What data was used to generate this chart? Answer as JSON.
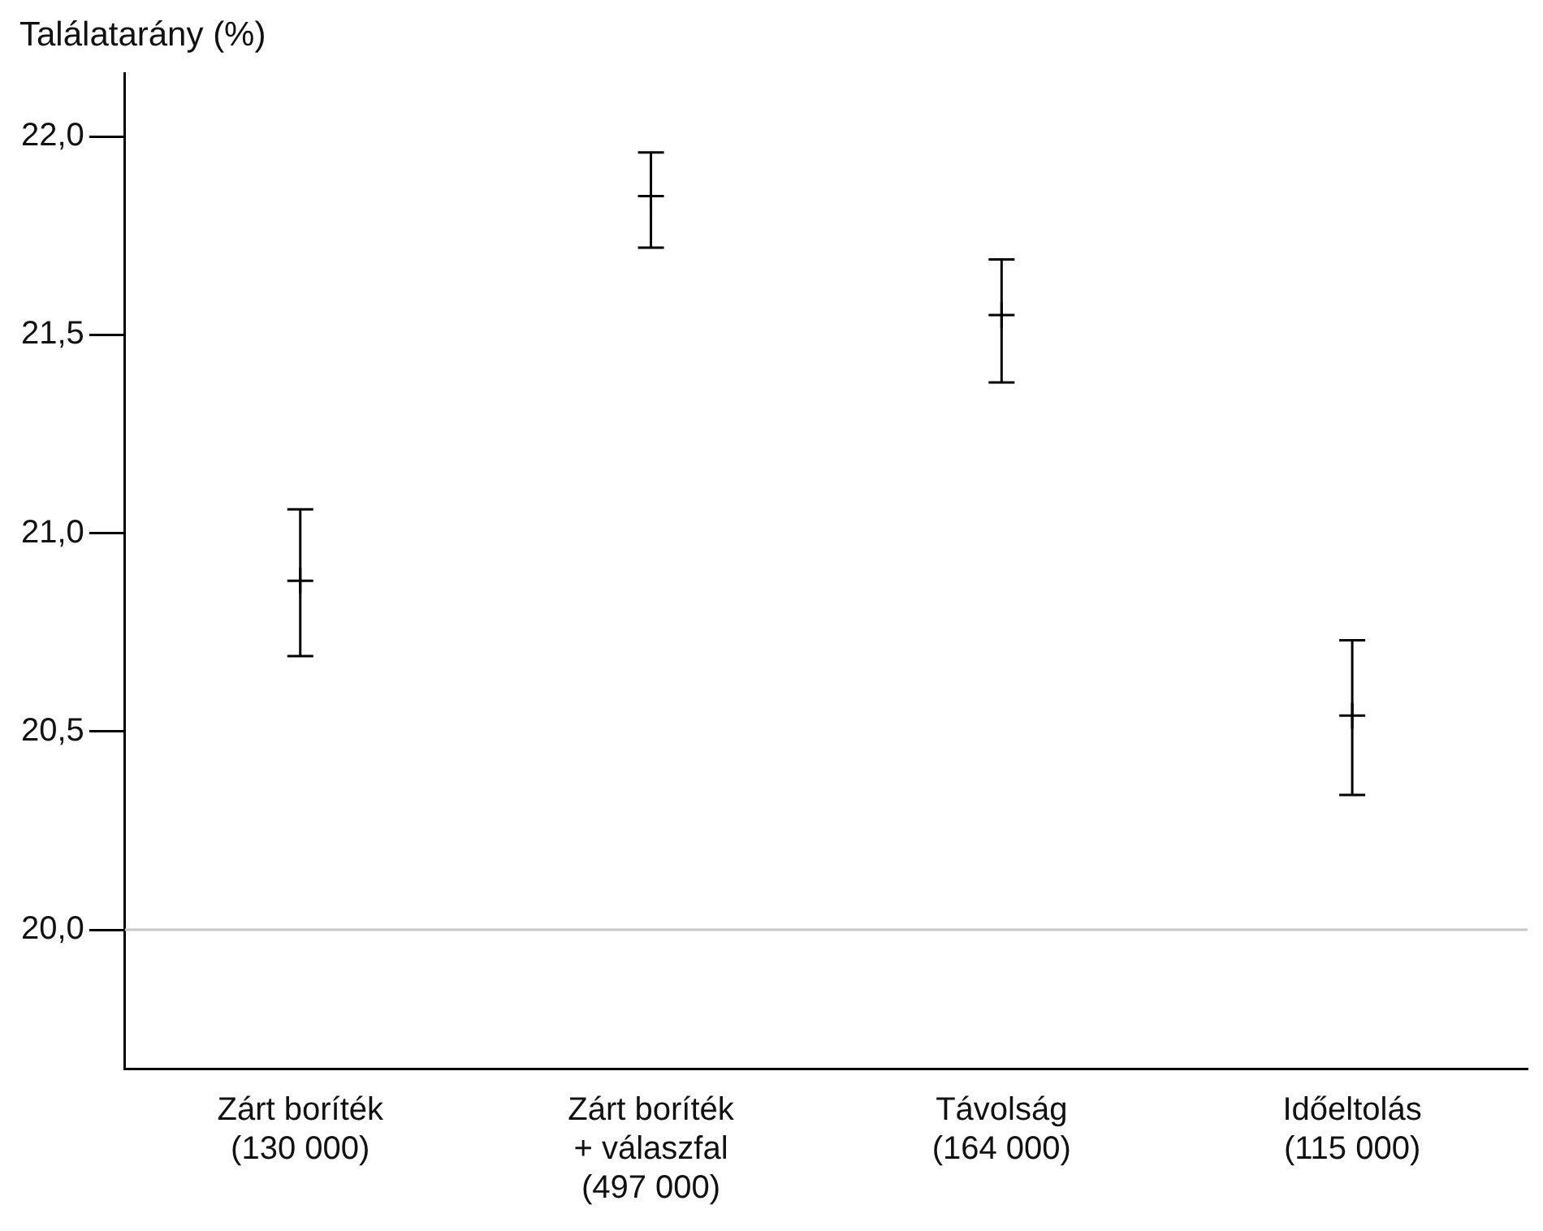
{
  "chart_data": {
    "type": "scatter",
    "ylabel": "Találatarány (%)",
    "categories": [
      "Zárt boríték\n(130 000)",
      "Zárt boríték\n+ válaszfal\n(497 000)",
      "Távolság\n(164 000)",
      "Időeltolás\n(115 000)"
    ],
    "values": [
      20.88,
      21.85,
      21.55,
      20.54
    ],
    "errors": [
      [
        20.69,
        21.06
      ],
      [
        21.72,
        21.96
      ],
      [
        21.38,
        21.69
      ],
      [
        20.34,
        20.73
      ]
    ],
    "color": "#000000",
    "marker": "cross",
    "ylim": [
      19.65,
      22.16
    ],
    "yticks": [
      {
        "value": 20,
        "label": "20,0"
      },
      {
        "value": 20.5,
        "label": "20,5"
      },
      {
        "value": 21,
        "label": "21,0"
      },
      {
        "value": 21.5,
        "label": "21,5"
      },
      {
        "value": 22,
        "label": "22,0"
      }
    ],
    "ref_lines": [
      {
        "axis": "y",
        "value": 20,
        "color": "#c8c8c8"
      }
    ],
    "grid": false,
    "legend": false
  }
}
